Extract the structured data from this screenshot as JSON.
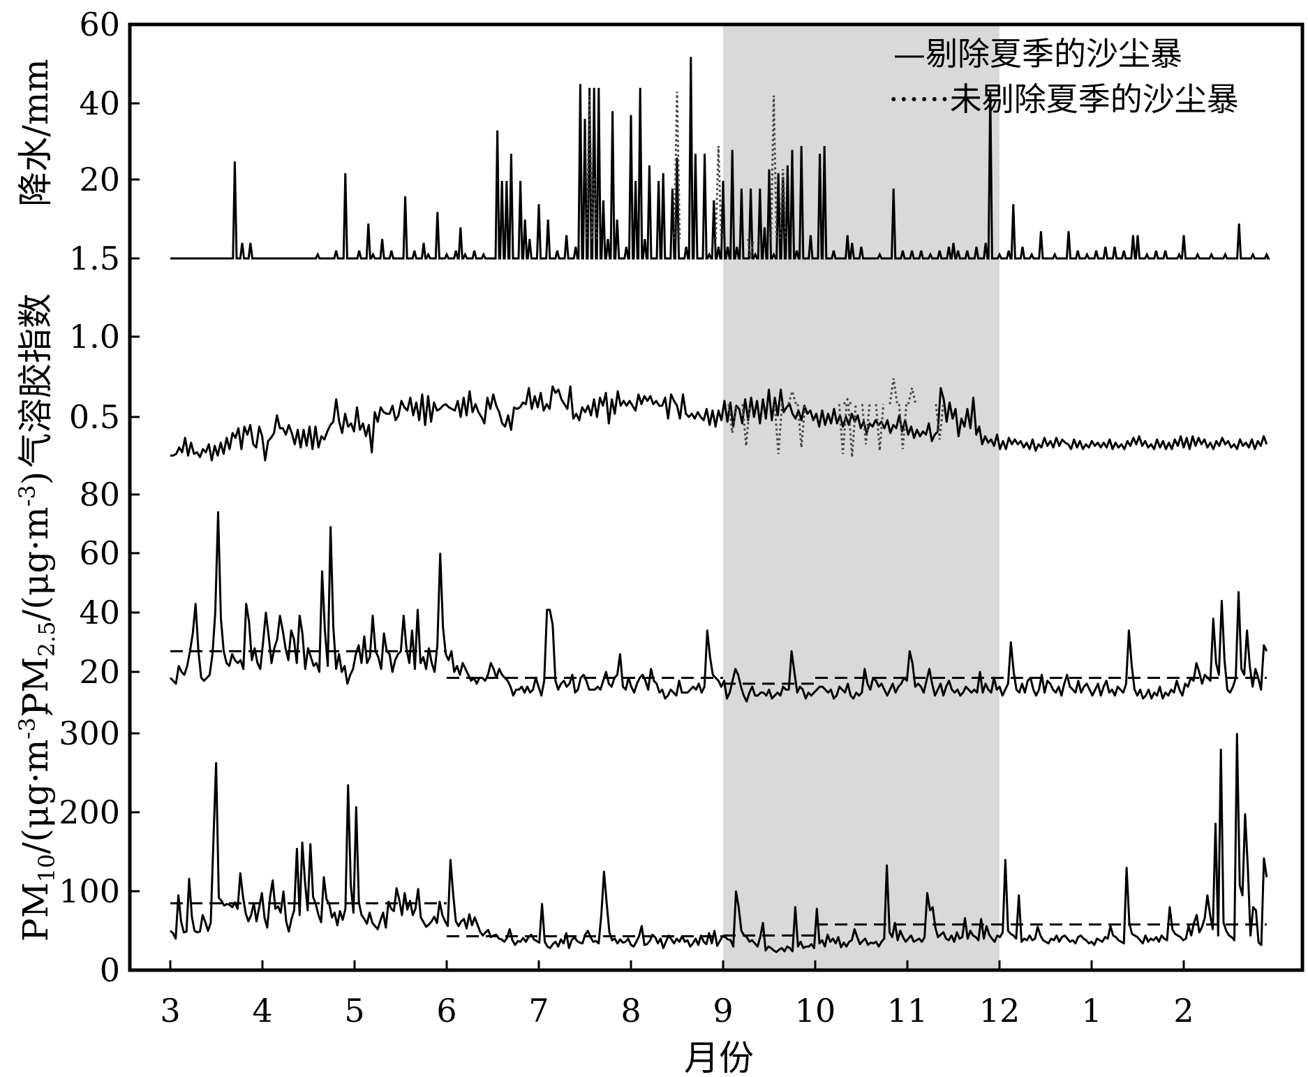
{
  "chart_data": {
    "type": "line",
    "xlabel": "月份",
    "x_tick_labels": [
      "3",
      "4",
      "5",
      "6",
      "7",
      "8",
      "9",
      "10",
      "11",
      "12",
      "1",
      "2"
    ],
    "x_range_months": [
      0,
      11.9
    ],
    "shaded_region": {
      "from_month": 6,
      "to_month": 9,
      "color": "#d9d9d9"
    },
    "legend": {
      "position": "top-right",
      "entries": [
        {
          "label": "—剔除夏季的沙尘暴",
          "style": "solid"
        },
        {
          "label": "······未剔除夏季的沙尘暴",
          "style": "dotted"
        }
      ]
    },
    "panels": [
      {
        "id": "precip",
        "ylabel": "降水/mm",
        "tick_labels": [
          "60",
          "40",
          "20",
          "1.5"
        ],
        "baseline": 0,
        "solid_peaks": [
          [
            0.7,
            25
          ],
          [
            0.78,
            4
          ],
          [
            0.87,
            4
          ],
          [
            1.6,
            1
          ],
          [
            1.8,
            2
          ],
          [
            1.9,
            22
          ],
          [
            2.05,
            2
          ],
          [
            2.15,
            9
          ],
          [
            2.2,
            1
          ],
          [
            2.3,
            5
          ],
          [
            2.4,
            2
          ],
          [
            2.55,
            16
          ],
          [
            2.65,
            2
          ],
          [
            2.75,
            4
          ],
          [
            2.8,
            1
          ],
          [
            2.9,
            12
          ],
          [
            3.0,
            1
          ],
          [
            3.1,
            2
          ],
          [
            3.15,
            8
          ],
          [
            3.2,
            1
          ],
          [
            3.3,
            2
          ],
          [
            3.4,
            1
          ],
          [
            3.55,
            33
          ],
          [
            3.6,
            20
          ],
          [
            3.65,
            20
          ],
          [
            3.7,
            27
          ],
          [
            3.8,
            20
          ],
          [
            3.85,
            10
          ],
          [
            3.9,
            5
          ],
          [
            4.0,
            14
          ],
          [
            4.1,
            10
          ],
          [
            4.2,
            2
          ],
          [
            4.3,
            6
          ],
          [
            4.4,
            3
          ],
          [
            4.45,
            45
          ],
          [
            4.5,
            36
          ],
          [
            4.55,
            44
          ],
          [
            4.6,
            44
          ],
          [
            4.65,
            44
          ],
          [
            4.7,
            15
          ],
          [
            4.75,
            5
          ],
          [
            4.8,
            38
          ],
          [
            4.85,
            10
          ],
          [
            4.95,
            3
          ],
          [
            5.0,
            37
          ],
          [
            5.05,
            20
          ],
          [
            5.1,
            44
          ],
          [
            5.15,
            5
          ],
          [
            5.2,
            24
          ],
          [
            5.3,
            20
          ],
          [
            5.35,
            22
          ],
          [
            5.45,
            18
          ],
          [
            5.5,
            26
          ],
          [
            5.6,
            3
          ],
          [
            5.65,
            52
          ],
          [
            5.7,
            27
          ],
          [
            5.8,
            27
          ],
          [
            5.85,
            1
          ],
          [
            5.9,
            15
          ],
          [
            5.95,
            3
          ],
          [
            6.0,
            20
          ],
          [
            6.05,
            3
          ],
          [
            6.1,
            28
          ],
          [
            6.15,
            3
          ],
          [
            6.2,
            18
          ],
          [
            6.3,
            18
          ],
          [
            6.35,
            1
          ],
          [
            6.4,
            18
          ],
          [
            6.45,
            8
          ],
          [
            6.5,
            23
          ],
          [
            6.55,
            1
          ],
          [
            6.6,
            22
          ],
          [
            6.65,
            21
          ],
          [
            6.7,
            24
          ],
          [
            6.75,
            28
          ],
          [
            6.8,
            2
          ],
          [
            6.85,
            29
          ],
          [
            6.95,
            6
          ],
          [
            7.05,
            27
          ],
          [
            7.1,
            29
          ],
          [
            7.2,
            2
          ],
          [
            7.3,
            0
          ],
          [
            7.35,
            6
          ],
          [
            7.4,
            4
          ],
          [
            7.5,
            3
          ],
          [
            7.7,
            1
          ],
          [
            7.85,
            18
          ],
          [
            7.95,
            2
          ],
          [
            8.05,
            2
          ],
          [
            8.15,
            2
          ],
          [
            8.25,
            1
          ],
          [
            8.35,
            2
          ],
          [
            8.45,
            3
          ],
          [
            8.5,
            4
          ],
          [
            8.55,
            2
          ],
          [
            8.65,
            2
          ],
          [
            8.75,
            3
          ],
          [
            8.85,
            4
          ],
          [
            8.9,
            43
          ],
          [
            9.0,
            1
          ],
          [
            9.1,
            2
          ],
          [
            9.15,
            14
          ],
          [
            9.25,
            3
          ],
          [
            9.35,
            1
          ],
          [
            9.45,
            7
          ],
          [
            9.6,
            1
          ],
          [
            9.75,
            7
          ],
          [
            9.85,
            2
          ],
          [
            9.95,
            1
          ],
          [
            10.05,
            2
          ],
          [
            10.15,
            3
          ],
          [
            10.25,
            3
          ],
          [
            10.35,
            2
          ],
          [
            10.45,
            6
          ],
          [
            10.5,
            6
          ],
          [
            10.6,
            1
          ],
          [
            10.7,
            2
          ],
          [
            10.8,
            2
          ],
          [
            10.95,
            1
          ],
          [
            11.0,
            6
          ],
          [
            11.15,
            1
          ],
          [
            11.3,
            1
          ],
          [
            11.45,
            1
          ],
          [
            11.6,
            9
          ],
          [
            11.75,
            1
          ],
          [
            11.9,
            1
          ]
        ],
        "dotted_peaks": [
          [
            4.55,
            42
          ],
          [
            4.6,
            21
          ],
          [
            5.5,
            43
          ],
          [
            5.95,
            29
          ],
          [
            6.3,
            0
          ],
          [
            6.55,
            42
          ],
          [
            6.65,
            23
          ]
        ]
      },
      {
        "id": "aerosol",
        "ylabel": "气溶胶指数",
        "tick_labels": [
          "1.0",
          "0.5"
        ],
        "ylim": [
          0.1,
          1.0
        ],
        "solid": "0.26,0.26,0.27,0.31,0.28,0.37,0.26,0.34,0.27,0.28,0.25,0.30,0.28,0.33,0.23,0.32,0.26,0.34,0.27,0.37,0.30,0.40,0.37,0.43,0.30,0.44,0.39,0.45,0.33,0.31,0.44,0.38,0.23,0.35,0.37,0.40,0.51,0.43,0.43,0.39,0.45,0.40,0.33,0.42,0.31,0.42,0.32,0.44,0.30,0.44,0.31,0.38,0.36,0.41,0.45,0.47,0.61,0.47,0.40,0.52,0.44,0.46,0.41,0.56,0.42,0.46,0.38,0.45,0.28,0.53,0.47,0.56,0.53,0.52,0.52,0.57,0.48,0.51,0.60,0.56,0.54,0.62,0.51,0.59,0.48,0.64,0.45,0.63,0.47,0.59,0.54,0.55,0.57,0.58,0.56,0.55,0.54,0.60,0.50,0.62,0.51,0.66,0.53,0.58,0.53,0.50,0.46,0.62,0.55,0.64,0.57,0.53,0.46,0.44,0.51,0.42,0.56,0.55,0.56,0.59,0.58,0.68,0.55,0.63,0.56,0.65,0.54,0.58,0.55,0.69,0.65,0.67,0.61,0.58,0.55,0.69,0.49,0.52,0.48,0.56,0.53,0.57,0.51,0.61,0.50,0.62,0.57,0.65,0.46,0.61,0.52,0.66,0.57,0.60,0.57,0.60,0.57,0.54,0.64,0.58,0.63,0.60,0.63,0.58,0.60,0.57,0.57,0.62,0.49,0.64,0.60,0.57,0.49,0.64,0.52,0.50,0.52,0.49,0.53,0.50,0.48,0.55,0.45,0.54,0.44,0.54,0.48,0.60,0.47,0.59,0.44,0.57,0.55,0.46,0.61,0.48,0.62,0.50,0.60,0.46,0.61,0.49,0.67,0.48,0.62,0.51,0.67,0.53,0.56,0.58,0.52,0.49,0.54,0.48,0.57,0.52,0.54,0.48,0.52,0.44,0.54,0.45,0.52,0.46,0.55,0.46,0.51,0.44,0.50,0.45,0.52,0.47,0.51,0.43,0.47,0.40,0.46,0.44,0.48,0.45,0.47,0.43,0.48,0.40,0.45,0.43,0.51,0.41,0.48,0.39,0.44,0.37,0.42,0.38,0.41,0.39,0.46,0.35,0.39,0.41,0.68,0.61,0.47,0.59,0.49,0.55,0.38,0.49,0.44,0.55,0.43,0.62,0.39,0.44,0.33,0.38,0.34,0.36,0.32,0.39,0.30,0.35,0.30,0.37,0.33,0.36,0.33,0.35,0.31,0.34,0.30,0.36,0.29,0.33,0.31,0.37,0.32,0.35,0.31,0.37,0.32,0.36,0.34,0.33,0.30,0.36,0.31,0.35,0.30,0.33,0.31,0.35,0.32,0.34,0.31,0.34,0.31,0.36,0.30,0.34,0.31,0.33,0.30,0.35,0.32,0.37,0.33,0.38,0.32,0.35,0.31,0.33,0.30,0.36,0.31,0.35,0.30,0.34,0.30,0.36,0.32,0.38,0.31,0.37,0.30,0.38,0.32,0.37,0.33,0.36,0.31,0.34,0.30,0.35,0.32,0.37,0.33,0.35,0.31,0.33,0.30,0.36,0.32,0.34,0.31,0.36,0.30,0.35,0.32,0.38,0.33",
        "dotted_dips": [
          [
            6.1,
            0.4
          ],
          [
            6.25,
            0.32
          ],
          [
            6.6,
            0.27
          ],
          [
            6.75,
            0.66
          ],
          [
            6.85,
            0.31
          ],
          [
            7.3,
            0.27
          ],
          [
            7.35,
            0.61
          ],
          [
            7.4,
            0.25
          ],
          [
            7.55,
            0.33
          ],
          [
            7.7,
            0.29
          ],
          [
            7.85,
            0.74
          ],
          [
            7.95,
            0.3
          ],
          [
            8.05,
            0.68
          ],
          [
            8.35,
            0.36
          ]
        ]
      },
      {
        "id": "pm25",
        "ylabel": "PM2.5/(μg·m-3)",
        "ylabel_parts": [
          "PM",
          "2.5",
          "/(μg·m",
          "-3",
          ")"
        ],
        "tick_labels": [
          "80",
          "60",
          "40",
          "20"
        ],
        "ylim": [
          0,
          80
        ],
        "solid": "18,17,16,22,20,19,22,27,33,43,27,18,17,18,19,26,40,74,38,27,23,22,26,24,23,24,21,43,37,24,28,23,21,30,40,32,23,28,31,39,34,28,24,34,31,23,39,33,21,28,25,22,23,20,54,34,22,69,35,21,26,20,22,16,19,21,26,29,23,32,23,25,39,27,25,21,33,27,26,20,24,26,27,39,28,23,34,21,41,23,25,21,28,23,20,29,60,35,26,24,27,20,22,19,23,21,19,17,18,16,18,18,17,19,23,21,18,21,19,18,17,15,12,14,14,15,13,15,13,14,18,15,12,17,41,41,36,17,14,16,17,15,16,19,13,14,18,19,17,14,14,14,15,14,17,20,16,15,18,19,26,15,14,18,15,13,16,18,19,17,14,21,17,16,13,14,11,12,14,13,12,17,13,13,13,14,15,14,16,13,15,34,25,19,18,17,15,17,11,13,17,21,19,15,12,10,13,15,12,12,13,13,12,14,11,12,13,12,15,14,14,27,20,13,15,14,11,13,12,13,14,15,15,14,13,14,11,12,15,14,13,16,12,11,13,12,13,21,16,14,18,17,15,16,14,12,14,16,13,15,16,18,17,27,23,15,16,15,13,17,21,16,12,14,16,12,15,17,14,13,14,12,13,15,14,13,14,13,20,13,16,14,13,18,14,15,12,14,16,30,20,14,13,16,13,17,18,14,12,14,19,13,17,16,14,13,15,12,16,19,15,14,13,17,13,15,16,14,12,14,16,12,15,17,13,14,12,15,14,13,16,34,22,14,12,14,11,12,14,11,13,12,15,11,13,12,14,13,17,14,12,16,15,18,17,23,20,16,19,18,17,38,23,19,44,24,14,13,15,18,47,21,19,34,22,15,21,18,14,29,27",
        "dashed_segments": [
          [
            0,
            3,
            27
          ],
          [
            3,
            6,
            18
          ],
          [
            6,
            7,
            16
          ],
          [
            7,
            11.9,
            18
          ]
        ]
      },
      {
        "id": "pm10",
        "ylabel": "PM10/(μg·m-3)",
        "ylabel_parts": [
          "PM",
          "10",
          "/(μg·m",
          "-3",
          ")"
        ],
        "tick_labels": [
          "300",
          "200",
          "100",
          "0"
        ],
        "ylim": [
          0,
          300
        ],
        "solid": "50,47,40,95,62,48,49,116,68,50,48,49,70,61,50,60,165,263,92,88,82,84,83,80,86,78,123,93,72,62,70,85,62,80,98,66,54,92,114,78,81,73,100,62,49,65,76,154,70,162,112,76,160,93,84,70,61,118,90,84,67,73,57,75,64,78,235,108,73,207,86,70,65,59,73,60,56,52,63,73,54,87,78,75,104,89,70,98,77,88,70,78,103,67,61,55,58,62,68,60,87,70,62,56,140,97,62,56,62,65,53,71,57,67,58,49,44,48,51,42,44,45,40,39,36,41,52,38,32,37,36,41,36,42,45,39,37,35,84,36,30,28,33,36,30,39,34,47,28,38,42,37,35,34,45,50,42,36,37,34,70,125,85,48,38,40,34,39,35,36,40,32,30,36,43,56,32,33,37,45,42,34,40,28,36,44,39,34,40,36,43,36,38,30,34,40,32,44,36,33,47,34,50,31,37,43,42,39,38,30,100,80,50,44,42,36,38,34,30,42,60,25,30,28,25,23,26,28,24,30,28,24,80,30,36,28,30,30,33,28,78,34,38,30,45,36,40,34,42,29,35,30,36,38,52,42,33,37,40,32,35,34,36,30,36,40,133,48,42,60,38,50,42,36,40,44,36,38,40,36,42,98,76,80,54,42,45,48,40,38,44,36,48,40,42,66,40,50,44,42,38,65,40,56,45,40,36,44,42,48,140,50,46,44,40,95,36,40,38,44,38,40,55,44,38,36,34,40,38,44,36,42,44,40,36,38,34,42,44,40,38,34,36,32,40,38,36,42,40,56,44,42,38,36,34,130,60,46,44,42,38,34,44,36,40,38,42,36,44,40,38,80,52,46,44,42,38,40,56,44,60,70,48,55,66,95,70,52,186,44,280,60,50,44,42,38,300,108,95,198,130,44,80,76,35,32,142,118",
        "dashed_segments": [
          [
            0,
            3,
            85
          ],
          [
            3,
            6,
            43
          ],
          [
            6,
            7,
            44
          ],
          [
            7,
            11.9,
            58
          ]
        ]
      }
    ]
  }
}
